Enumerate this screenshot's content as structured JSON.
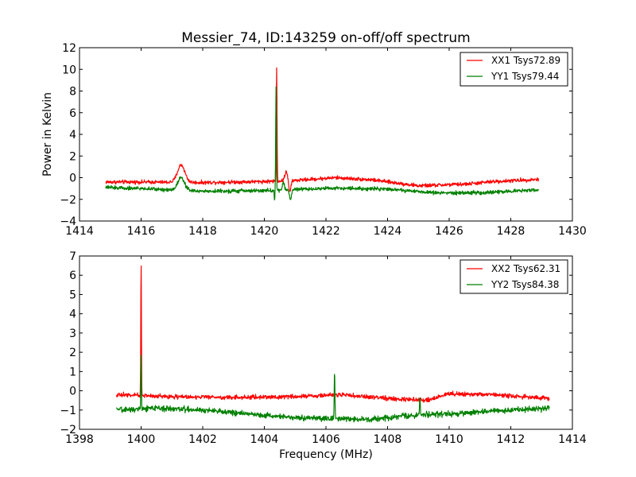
{
  "chart_data": [
    {
      "type": "line",
      "title": "Messier_74, ID:143259 on-off/off spectrum",
      "xlabel": "",
      "ylabel": "Power in Kelvin",
      "xlim": [
        1414,
        1430
      ],
      "ylim": [
        -4,
        12
      ],
      "xticks": [
        "1414",
        "1416",
        "1418",
        "1420",
        "1422",
        "1424",
        "1426",
        "1428",
        "1430"
      ],
      "xtick_values": [
        1414,
        1416,
        1418,
        1420,
        1422,
        1424,
        1426,
        1428,
        1430
      ],
      "yticks": [
        "−4",
        "−2",
        "0",
        "2",
        "4",
        "6",
        "8",
        "10",
        "12"
      ],
      "ytick_values": [
        -4,
        -2,
        0,
        2,
        4,
        6,
        8,
        10,
        12
      ],
      "grid": false,
      "legend_position": "top-right",
      "x_range": [
        1414.85,
        1428.9
      ],
      "series": [
        {
          "name": "XX1 Tsys72.89",
          "color": "#ff0000",
          "noise": 0.12,
          "baseline": [
            [
              1414.85,
              -0.4
            ],
            [
              1416,
              -0.4
            ],
            [
              1418,
              -0.45
            ],
            [
              1420,
              -0.35
            ],
            [
              1421,
              -0.25
            ],
            [
              1422.3,
              0.0
            ],
            [
              1423.5,
              -0.2
            ],
            [
              1425,
              -0.75
            ],
            [
              1426.5,
              -0.6
            ],
            [
              1427.5,
              -0.35
            ],
            [
              1428.9,
              -0.15
            ]
          ],
          "features": [
            {
              "center": 1417.3,
              "width": 0.12,
              "height": 1.6
            },
            {
              "center": 1420.4,
              "width": 0.012,
              "height": 10.5
            },
            {
              "center": 1420.72,
              "width": 0.05,
              "height": 0.9
            },
            {
              "center": 1420.82,
              "width": 0.04,
              "height": -1.1
            }
          ]
        },
        {
          "name": "YY1 Tsys79.44",
          "color": "#008000",
          "noise": 0.12,
          "baseline": [
            [
              1414.85,
              -0.9
            ],
            [
              1416,
              -1.0
            ],
            [
              1418,
              -1.25
            ],
            [
              1420,
              -1.2
            ],
            [
              1421,
              -1.1
            ],
            [
              1422.3,
              -0.95
            ],
            [
              1424,
              -1.05
            ],
            [
              1425.5,
              -1.4
            ],
            [
              1427,
              -1.4
            ],
            [
              1428.9,
              -1.1
            ]
          ],
          "features": [
            {
              "center": 1417.3,
              "width": 0.11,
              "height": 1.2
            },
            {
              "center": 1420.38,
              "width": 0.012,
              "height": 9.5
            },
            {
              "center": 1420.33,
              "width": 0.01,
              "height": -1.0
            },
            {
              "center": 1420.62,
              "width": 0.03,
              "height": 0.7
            },
            {
              "center": 1420.85,
              "width": 0.03,
              "height": -0.9
            }
          ]
        }
      ]
    },
    {
      "type": "line",
      "title": "",
      "xlabel": "Frequency (MHz)",
      "ylabel": "",
      "xlim": [
        1398,
        1414
      ],
      "ylim": [
        -2,
        7
      ],
      "xticks": [
        "1398",
        "1400",
        "1402",
        "1404",
        "1406",
        "1408",
        "1410",
        "1412",
        "1414"
      ],
      "xtick_values": [
        1398,
        1400,
        1402,
        1404,
        1406,
        1408,
        1410,
        1412,
        1414
      ],
      "yticks": [
        "−2",
        "−1",
        "0",
        "1",
        "2",
        "3",
        "4",
        "5",
        "6",
        "7"
      ],
      "ytick_values": [
        -2,
        -1,
        0,
        1,
        2,
        3,
        4,
        5,
        6,
        7
      ],
      "grid": false,
      "legend_position": "top-right",
      "x_range": [
        1399.2,
        1413.25
      ],
      "series": [
        {
          "name": "XX2 Tsys62.31",
          "color": "#ff0000",
          "noise": 0.08,
          "baseline": [
            [
              1399.2,
              -0.2
            ],
            [
              1401,
              -0.3
            ],
            [
              1403,
              -0.35
            ],
            [
              1405,
              -0.3
            ],
            [
              1406.5,
              -0.2
            ],
            [
              1408,
              -0.4
            ],
            [
              1409.3,
              -0.5
            ],
            [
              1410,
              -0.15
            ],
            [
              1411.5,
              -0.2
            ],
            [
              1413.25,
              -0.4
            ]
          ],
          "features": [
            {
              "center": 1400.0,
              "width": 0.01,
              "height": 7.1
            }
          ]
        },
        {
          "name": "YY2 Tsys84.38",
          "color": "#008000",
          "noise": 0.1,
          "baseline": [
            [
              1399.2,
              -1.0
            ],
            [
              1400.5,
              -0.9
            ],
            [
              1402,
              -1.0
            ],
            [
              1403.5,
              -1.2
            ],
            [
              1405,
              -1.4
            ],
            [
              1406.5,
              -1.45
            ],
            [
              1407.5,
              -1.5
            ],
            [
              1408.5,
              -1.3
            ],
            [
              1410,
              -1.2
            ],
            [
              1411.5,
              -1.05
            ],
            [
              1413.25,
              -0.9
            ]
          ],
          "features": [
            {
              "center": 1400.0,
              "width": 0.01,
              "height": 2.9
            },
            {
              "center": 1406.28,
              "width": 0.012,
              "height": 2.4
            },
            {
              "center": 1409.05,
              "width": 0.012,
              "height": 1.0
            }
          ]
        }
      ]
    }
  ]
}
